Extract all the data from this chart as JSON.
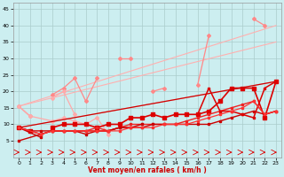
{
  "xlabel": "Vent moyen/en rafales ( km/h )",
  "xlim": [
    -0.5,
    23.5
  ],
  "ylim": [
    0,
    47
  ],
  "yticks": [
    5,
    10,
    15,
    20,
    25,
    30,
    35,
    40,
    45
  ],
  "xticks": [
    0,
    1,
    2,
    3,
    4,
    5,
    6,
    7,
    8,
    9,
    10,
    11,
    12,
    13,
    14,
    15,
    16,
    17,
    18,
    19,
    20,
    21,
    22,
    23
  ],
  "bg_color": "#cceef0",
  "grid_color": "#aacccc",
  "light_series": [
    {
      "x": [
        0,
        23
      ],
      "y": [
        15.5,
        40
      ],
      "color": "#ffb0b0",
      "lw": 0.8,
      "marker": null
    },
    {
      "x": [
        0,
        23
      ],
      "y": [
        15.5,
        35
      ],
      "color": "#ffb0b0",
      "lw": 0.8,
      "marker": null
    },
    {
      "x": [
        0,
        23
      ],
      "y": [
        9,
        23
      ],
      "color": "#ffb0b0",
      "lw": 0.8,
      "marker": null
    },
    {
      "x": [
        0,
        1,
        2,
        3,
        4,
        5,
        6,
        7,
        8,
        9,
        10,
        11,
        12,
        13,
        14,
        15,
        16,
        17,
        18,
        19,
        20,
        21,
        22,
        23
      ],
      "y": [
        15.5,
        12.5,
        null,
        19,
        21,
        24,
        17,
        24,
        null,
        30,
        30,
        null,
        20,
        21,
        null,
        null,
        22,
        37,
        null,
        null,
        null,
        42,
        40,
        null
      ],
      "color": "#ff8888",
      "lw": 0.9,
      "marker": "D",
      "ms": 2.0
    },
    {
      "x": [
        0,
        1,
        3,
        4,
        5,
        6,
        7,
        8
      ],
      "y": [
        15.5,
        12.5,
        11,
        12,
        11,
        10,
        12,
        7
      ],
      "color": "#ffaaaa",
      "lw": 0.9,
      "marker": "D",
      "ms": 2.0
    },
    {
      "x": [
        3,
        4,
        5,
        6
      ],
      "y": [
        18,
        20,
        13,
        null
      ],
      "color": "#ffaaaa",
      "lw": 0.9,
      "marker": "D",
      "ms": 2.0
    }
  ],
  "dark_series": [
    {
      "x": [
        0,
        1,
        2,
        3,
        4,
        5,
        6,
        7,
        8,
        9,
        10,
        11,
        12,
        13,
        14,
        15,
        16,
        17,
        18,
        19,
        20,
        21,
        22,
        23
      ],
      "y": [
        9,
        8,
        null,
        9,
        10,
        10,
        10,
        9,
        10,
        10,
        12,
        12,
        13,
        12,
        13,
        13,
        13,
        14,
        17,
        21,
        21,
        21,
        12,
        23
      ],
      "color": "#dd0000",
      "lw": 1.2,
      "marker": "s",
      "ms": 2.2
    },
    {
      "x": [
        0,
        23
      ],
      "y": [
        9,
        23
      ],
      "color": "#cc0000",
      "lw": 0.9,
      "marker": null
    },
    {
      "x": [
        0,
        1,
        2,
        3,
        4,
        5,
        6,
        7,
        8,
        9,
        10,
        11,
        12,
        13,
        14,
        15,
        16,
        17,
        18,
        19,
        20,
        21,
        22,
        23
      ],
      "y": [
        9,
        8,
        7,
        8,
        8,
        8,
        8,
        9,
        8,
        9,
        10,
        10,
        10,
        10,
        10,
        11,
        12,
        13,
        14,
        15,
        16,
        17,
        13,
        14
      ],
      "color": "#ee2222",
      "lw": 1.0,
      "marker": "s",
      "ms": 2.0
    },
    {
      "x": [
        0,
        1,
        2,
        3,
        4,
        5,
        6,
        7,
        8,
        9,
        10,
        11,
        12,
        13,
        14,
        15,
        16,
        17,
        18,
        19,
        20,
        21,
        22,
        23
      ],
      "y": [
        9,
        8,
        8,
        8,
        8,
        8,
        8,
        8,
        8,
        9,
        9,
        9,
        10,
        10,
        10,
        10,
        10,
        10,
        11,
        12,
        13,
        14,
        13,
        14
      ],
      "color": "#cc0000",
      "lw": 1.0,
      "marker": "s",
      "ms": 2.0
    },
    {
      "x": [
        0,
        2
      ],
      "y": [
        9,
        6
      ],
      "color": "#cc0000",
      "lw": 1.0,
      "marker": "s",
      "ms": 2.0
    },
    {
      "x": [
        0,
        2,
        3,
        4,
        5,
        6,
        7,
        8,
        9,
        10,
        11
      ],
      "y": [
        5,
        7,
        8,
        8,
        8,
        7,
        8,
        8,
        9,
        9,
        10
      ],
      "color": "#cc0000",
      "lw": 1.0,
      "marker": "s",
      "ms": 2.0
    },
    {
      "x": [
        16,
        17,
        18,
        19,
        20,
        21,
        22,
        23
      ],
      "y": [
        13,
        21,
        14,
        14,
        13,
        12,
        21,
        23
      ],
      "color": "#dd0000",
      "lw": 1.1,
      "marker": "s",
      "ms": 2.0
    },
    {
      "x": [
        0,
        2,
        3,
        4,
        5,
        6,
        7,
        8,
        9,
        10,
        11,
        12,
        13,
        14,
        15,
        16,
        17,
        18,
        19,
        20,
        21,
        22,
        23
      ],
      "y": [
        9,
        7,
        8,
        8,
        8,
        8,
        8,
        8,
        8,
        9,
        9,
        9,
        10,
        10,
        10,
        11,
        12,
        13,
        14,
        15,
        17,
        13,
        14
      ],
      "color": "#ff3333",
      "lw": 0.9,
      "marker": "s",
      "ms": 1.8
    }
  ]
}
